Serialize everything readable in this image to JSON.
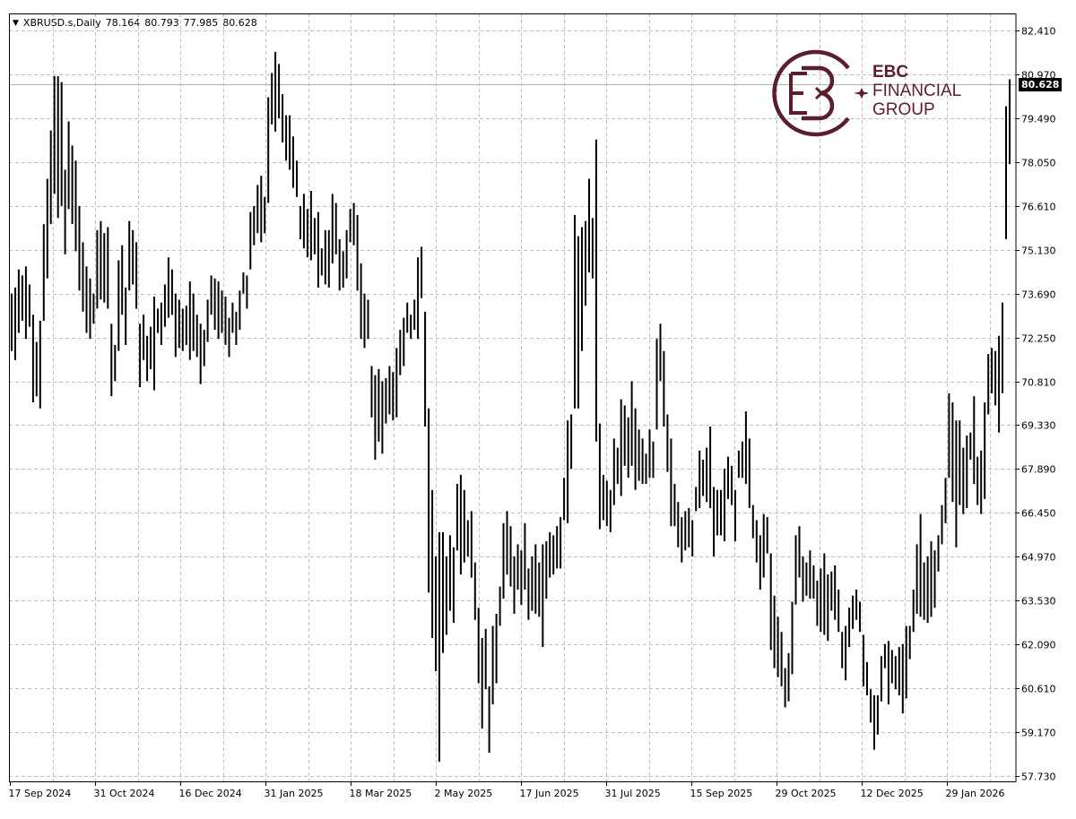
{
  "header": {
    "symbol": "XBRUSD.s,Daily",
    "open": "78.164",
    "high": "80.793",
    "low": "77.985",
    "close": "80.628"
  },
  "current_price_label": "80.628",
  "logo": {
    "line1": "EBC",
    "line2": "FINANCIAL",
    "line3": "GROUP",
    "color": "#5b1e2c"
  },
  "chart_data": {
    "type": "ohlc",
    "title": "XBRUSD.s,Daily",
    "last_bar": {
      "open": 78.164,
      "high": 80.793,
      "low": 77.985,
      "close": 80.628
    },
    "current_price": 80.628,
    "ylim": [
      57.73,
      82.41
    ],
    "grid": true,
    "y_ticks": [
      "82.410",
      "80.970",
      "79.490",
      "78.050",
      "76.610",
      "75.130",
      "73.690",
      "72.250",
      "70.810",
      "69.330",
      "67.890",
      "66.450",
      "64.970",
      "63.530",
      "62.090",
      "60.610",
      "59.170",
      "57.730"
    ],
    "x_ticks": [
      "17 Sep 2024",
      "31 Oct 2024",
      "16 Dec 2024",
      "31 Jan 2025",
      "18 Mar 2025",
      "2 May 2025",
      "17 Jun 2025",
      "31 Jul 2025",
      "15 Sep 2025",
      "29 Oct 2025",
      "12 Dec 2025",
      "29 Jan 2026"
    ],
    "bar_color": "#000000",
    "bars_high_low": [
      [
        73.7,
        71.8
      ],
      [
        73.9,
        71.5
      ],
      [
        74.5,
        72.4
      ],
      [
        74.3,
        72.8
      ],
      [
        74.6,
        72.2
      ],
      [
        74.0,
        72.6
      ],
      [
        73.0,
        70.1
      ],
      [
        72.1,
        70.3
      ],
      [
        72.8,
        69.9
      ],
      [
        76.0,
        72.8
      ],
      [
        77.5,
        74.2
      ],
      [
        79.1,
        76.0
      ],
      [
        80.9,
        77.0
      ],
      [
        80.9,
        76.2
      ],
      [
        80.7,
        76.6
      ],
      [
        77.8,
        75.0
      ],
      [
        79.4,
        76.5
      ],
      [
        78.6,
        76.0
      ],
      [
        78.1,
        75.1
      ],
      [
        76.6,
        73.8
      ],
      [
        75.4,
        73.1
      ],
      [
        74.6,
        72.4
      ],
      [
        74.2,
        72.2
      ],
      [
        73.7,
        72.7
      ],
      [
        75.8,
        73.2
      ],
      [
        76.1,
        73.5
      ],
      [
        75.7,
        73.4
      ],
      [
        75.9,
        73.2
      ],
      [
        72.7,
        70.3
      ],
      [
        72.0,
        70.8
      ],
      [
        74.8,
        71.8
      ],
      [
        75.3,
        73.0
      ],
      [
        73.9,
        72.0
      ],
      [
        76.1,
        73.8
      ],
      [
        75.8,
        74.0
      ],
      [
        75.4,
        73.2
      ],
      [
        72.7,
        70.6
      ],
      [
        73.0,
        71.5
      ],
      [
        72.3,
        70.8
      ],
      [
        72.6,
        71.2
      ],
      [
        73.6,
        70.5
      ],
      [
        73.2,
        72.4
      ],
      [
        73.4,
        72.0
      ],
      [
        74.0,
        72.6
      ],
      [
        74.9,
        72.9
      ],
      [
        74.5,
        73.0
      ],
      [
        73.7,
        71.6
      ],
      [
        73.5,
        71.9
      ],
      [
        73.2,
        71.8
      ],
      [
        73.3,
        72.0
      ],
      [
        74.1,
        71.5
      ],
      [
        73.7,
        71.8
      ],
      [
        73.0,
        71.6
      ],
      [
        72.7,
        70.7
      ],
      [
        72.5,
        71.3
      ],
      [
        73.5,
        72.1
      ],
      [
        74.3,
        73.0
      ],
      [
        74.2,
        72.5
      ],
      [
        74.1,
        72.2
      ],
      [
        73.8,
        72.4
      ],
      [
        73.6,
        72.0
      ],
      [
        72.9,
        71.6
      ],
      [
        73.4,
        72.4
      ],
      [
        73.1,
        72.0
      ],
      [
        73.8,
        72.5
      ],
      [
        74.4,
        73.7
      ],
      [
        74.3,
        73.2
      ],
      [
        76.4,
        74.5
      ],
      [
        76.6,
        75.3
      ],
      [
        77.3,
        75.7
      ],
      [
        77.6,
        75.4
      ],
      [
        76.9,
        75.7
      ],
      [
        80.2,
        76.7
      ],
      [
        81.0,
        79.3
      ],
      [
        81.7,
        79.06
      ],
      [
        81.3,
        79.5
      ],
      [
        80.3,
        78.7
      ],
      [
        79.6,
        78.1
      ],
      [
        79.6,
        77.8
      ],
      [
        78.9,
        77.2
      ],
      [
        78.1,
        76.9
      ],
      [
        76.6,
        75.5
      ],
      [
        77.0,
        75.2
      ],
      [
        76.5,
        74.9
      ],
      [
        77.1,
        74.8
      ],
      [
        76.2,
        75.0
      ],
      [
        76.4,
        73.9
      ],
      [
        75.2,
        74.3
      ],
      [
        75.8,
        74.0
      ],
      [
        75.8,
        73.9
      ],
      [
        77.0,
        74.7
      ],
      [
        76.7,
        75.0
      ],
      [
        75.5,
        73.8
      ],
      [
        75.1,
        73.9
      ],
      [
        75.8,
        74.2
      ],
      [
        76.5,
        75.4
      ],
      [
        76.7,
        75.3
      ],
      [
        76.3,
        73.8
      ],
      [
        74.7,
        72.2
      ],
      [
        73.7,
        71.9
      ],
      [
        73.5,
        72.2
      ],
      [
        71.3,
        69.6
      ],
      [
        71.0,
        68.2
      ],
      [
        71.2,
        68.8
      ],
      [
        70.8,
        68.4
      ],
      [
        70.9,
        69.4
      ],
      [
        71.3,
        69.7
      ],
      [
        71.1,
        69.5
      ],
      [
        71.9,
        69.6
      ],
      [
        72.5,
        71.0
      ],
      [
        72.9,
        71.3
      ],
      [
        73.4,
        72.4
      ],
      [
        73.0,
        72.2
      ],
      [
        73.5,
        72.5
      ],
      [
        74.9,
        72.2
      ],
      [
        75.25,
        73.55
      ],
      [
        73.1,
        69.3
      ],
      [
        69.9,
        63.8
      ],
      [
        67.2,
        62.3
      ],
      [
        65.0,
        61.2
      ],
      [
        65.8,
        58.2
      ],
      [
        65.8,
        61.8
      ],
      [
        65.0,
        62.4
      ],
      [
        65.7,
        63.2
      ],
      [
        65.3,
        62.8
      ],
      [
        67.4,
        65.2
      ],
      [
        67.7,
        64.4
      ],
      [
        67.2,
        64.8
      ],
      [
        66.2,
        65.0
      ],
      [
        66.5,
        64.3
      ],
      [
        64.8,
        62.9
      ],
      [
        63.3,
        60.8
      ],
      [
        62.3,
        59.3
      ],
      [
        62.6,
        60.6
      ],
      [
        60.7,
        58.5
      ],
      [
        62.7,
        60.1
      ],
      [
        63.1,
        60.8
      ],
      [
        64.0,
        62.7
      ],
      [
        66.1,
        63.6
      ],
      [
        66.5,
        64.4
      ],
      [
        66.0,
        64.0
      ],
      [
        65.0,
        63.1
      ],
      [
        65.4,
        63.9
      ],
      [
        65.2,
        63.4
      ],
      [
        66.1,
        63.9
      ],
      [
        64.6,
        62.9
      ],
      [
        65.0,
        63.2
      ],
      [
        65.4,
        63.1
      ],
      [
        64.8,
        63.0
      ],
      [
        65.4,
        62.0
      ],
      [
        65.5,
        63.6
      ],
      [
        65.8,
        64.3
      ],
      [
        65.7,
        64.4
      ],
      [
        66.0,
        64.6
      ],
      [
        66.3,
        64.6
      ],
      [
        67.6,
        66.2
      ],
      [
        69.5,
        66.1
      ],
      [
        69.7,
        67.9
      ],
      [
        76.3,
        69.9
      ],
      [
        75.6,
        69.9
      ],
      [
        75.9,
        71.8
      ],
      [
        76.1,
        73.3
      ],
      [
        77.5,
        74.4
      ],
      [
        76.2,
        74.2
      ],
      [
        78.8,
        68.8
      ],
      [
        69.4,
        65.9
      ],
      [
        67.7,
        66.2
      ],
      [
        67.5,
        66.0
      ],
      [
        67.2,
        65.8
      ],
      [
        68.9,
        66.7
      ],
      [
        68.6,
        67.4
      ],
      [
        70.2,
        67.0
      ],
      [
        70.0,
        68.0
      ],
      [
        69.6,
        67.6
      ],
      [
        70.8,
        68.0
      ],
      [
        69.9,
        67.2
      ],
      [
        69.2,
        67.5
      ],
      [
        68.9,
        67.4
      ],
      [
        68.4,
        67.4
      ],
      [
        69.2,
        67.6
      ],
      [
        68.8,
        67.6
      ],
      [
        72.2,
        69.2
      ],
      [
        72.7,
        70.8
      ],
      [
        71.8,
        69.3
      ],
      [
        69.7,
        67.8
      ],
      [
        68.9,
        66.0
      ],
      [
        67.4,
        66.0
      ],
      [
        66.8,
        65.3
      ],
      [
        66.3,
        64.8
      ],
      [
        66.5,
        65.2
      ],
      [
        66.6,
        65.3
      ],
      [
        66.2,
        65.0
      ],
      [
        67.3,
        66.5
      ],
      [
        68.5,
        66.6
      ],
      [
        68.2,
        67.0
      ],
      [
        68.6,
        66.8
      ],
      [
        69.3,
        66.6
      ],
      [
        67.3,
        65.0
      ],
      [
        67.2,
        65.7
      ],
      [
        67.2,
        65.7
      ],
      [
        67.9,
        65.5
      ],
      [
        68.3,
        66.9
      ],
      [
        68.0,
        66.7
      ],
      [
        67.2,
        65.5
      ],
      [
        68.5,
        67.6
      ],
      [
        68.8,
        67.6
      ],
      [
        69.8,
        67.4
      ],
      [
        68.9,
        66.6
      ],
      [
        66.7,
        65.6
      ],
      [
        66.2,
        64.8
      ],
      [
        65.7,
        63.9
      ],
      [
        66.4,
        64.3
      ],
      [
        66.3,
        65.1
      ],
      [
        65.1,
        61.9
      ],
      [
        63.7,
        61.3
      ],
      [
        63.0,
        61.0
      ],
      [
        62.5,
        60.7
      ],
      [
        61.3,
        60.0
      ],
      [
        61.8,
        60.2
      ],
      [
        63.5,
        61.1
      ],
      [
        65.7,
        63.4
      ],
      [
        66.0,
        64.3
      ],
      [
        65.0,
        63.5
      ],
      [
        64.8,
        63.7
      ],
      [
        65.2,
        63.6
      ],
      [
        64.7,
        63.6
      ],
      [
        64.2,
        62.7
      ],
      [
        64.6,
        62.5
      ],
      [
        65.1,
        62.4
      ],
      [
        64.4,
        62.2
      ],
      [
        64.5,
        63.2
      ],
      [
        64.7,
        62.9
      ],
      [
        63.9,
        62.5
      ],
      [
        62.5,
        61.3
      ],
      [
        62.7,
        60.9
      ],
      [
        63.3,
        62.0
      ],
      [
        63.7,
        62.6
      ],
      [
        63.9,
        62.9
      ],
      [
        63.5,
        62.5
      ],
      [
        62.4,
        60.7
      ],
      [
        61.5,
        60.4
      ],
      [
        60.6,
        59.5
      ],
      [
        60.4,
        58.6
      ],
      [
        60.4,
        59.1
      ],
      [
        61.7,
        60.2
      ],
      [
        62.1,
        61.3
      ],
      [
        62.2,
        60.1
      ],
      [
        61.9,
        60.8
      ],
      [
        61.7,
        60.6
      ],
      [
        62.0,
        60.4
      ],
      [
        62.1,
        59.8
      ],
      [
        62.7,
        60.3
      ],
      [
        62.7,
        61.6
      ],
      [
        63.9,
        62.5
      ],
      [
        65.4,
        63.1
      ],
      [
        66.4,
        63.0
      ],
      [
        64.8,
        62.9
      ],
      [
        65.0,
        62.8
      ],
      [
        65.5,
        63.0
      ],
      [
        65.2,
        63.3
      ],
      [
        65.7,
        64.5
      ],
      [
        66.7,
        65.4
      ],
      [
        67.6,
        66.1
      ],
      [
        70.4,
        67.6
      ],
      [
        70.1,
        66.8
      ],
      [
        69.5,
        65.3
      ],
      [
        69.5,
        66.7
      ],
      [
        68.6,
        66.4
      ],
      [
        69.0,
        66.6
      ],
      [
        69.1,
        68.2
      ],
      [
        70.3,
        67.4
      ],
      [
        68.3,
        66.7
      ],
      [
        68.5,
        66.4
      ],
      [
        70.1,
        66.9
      ],
      [
        71.7,
        69.7
      ],
      [
        71.9,
        70.4
      ],
      [
        71.8,
        70.0
      ],
      [
        72.3,
        69.1
      ],
      [
        73.4,
        70.4
      ],
      [
        79.9,
        75.5
      ],
      [
        80.793,
        77.985
      ]
    ]
  }
}
